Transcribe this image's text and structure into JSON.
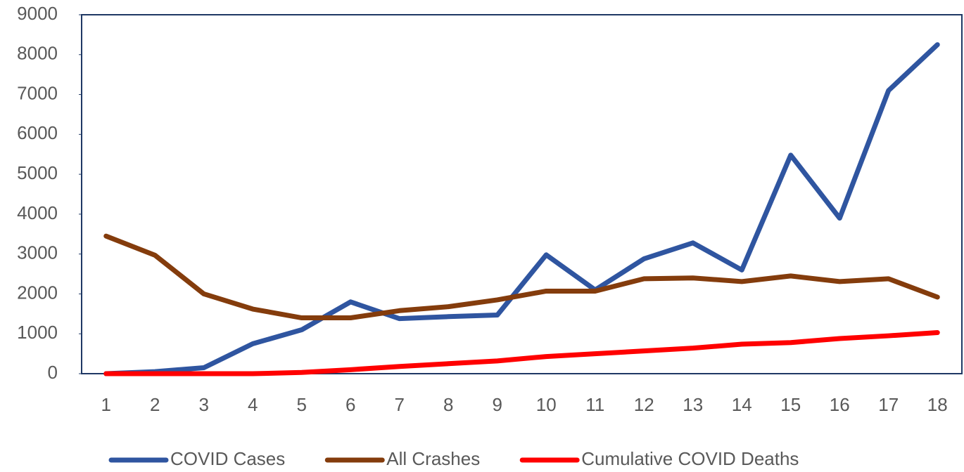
{
  "chart_data": {
    "type": "line",
    "categories": [
      1,
      2,
      3,
      4,
      5,
      6,
      7,
      8,
      9,
      10,
      11,
      12,
      13,
      14,
      15,
      16,
      17,
      18
    ],
    "series": [
      {
        "name": "COVID Cases",
        "color": "#2f55a0",
        "values": [
          0,
          50,
          150,
          750,
          1100,
          1800,
          1380,
          1430,
          1470,
          2980,
          2100,
          2880,
          3280,
          2600,
          5480,
          3900,
          7100,
          8250
        ]
      },
      {
        "name": "All Crashes",
        "color": "#843c0c",
        "values": [
          3450,
          2970,
          2000,
          1620,
          1400,
          1400,
          1580,
          1680,
          1850,
          2070,
          2070,
          2380,
          2400,
          2310,
          2450,
          2310,
          2380,
          1920
        ]
      },
      {
        "name": "Cumulative COVID Deaths",
        "color": "#ff0000",
        "values": [
          0,
          0,
          0,
          0,
          30,
          100,
          180,
          250,
          320,
          430,
          500,
          570,
          640,
          740,
          780,
          880,
          950,
          1030
        ]
      }
    ],
    "ylim": [
      0,
      9000
    ],
    "yticks": [
      0,
      1000,
      2000,
      3000,
      4000,
      5000,
      6000,
      7000,
      8000,
      9000
    ],
    "grid": false,
    "legend": "bottom"
  }
}
